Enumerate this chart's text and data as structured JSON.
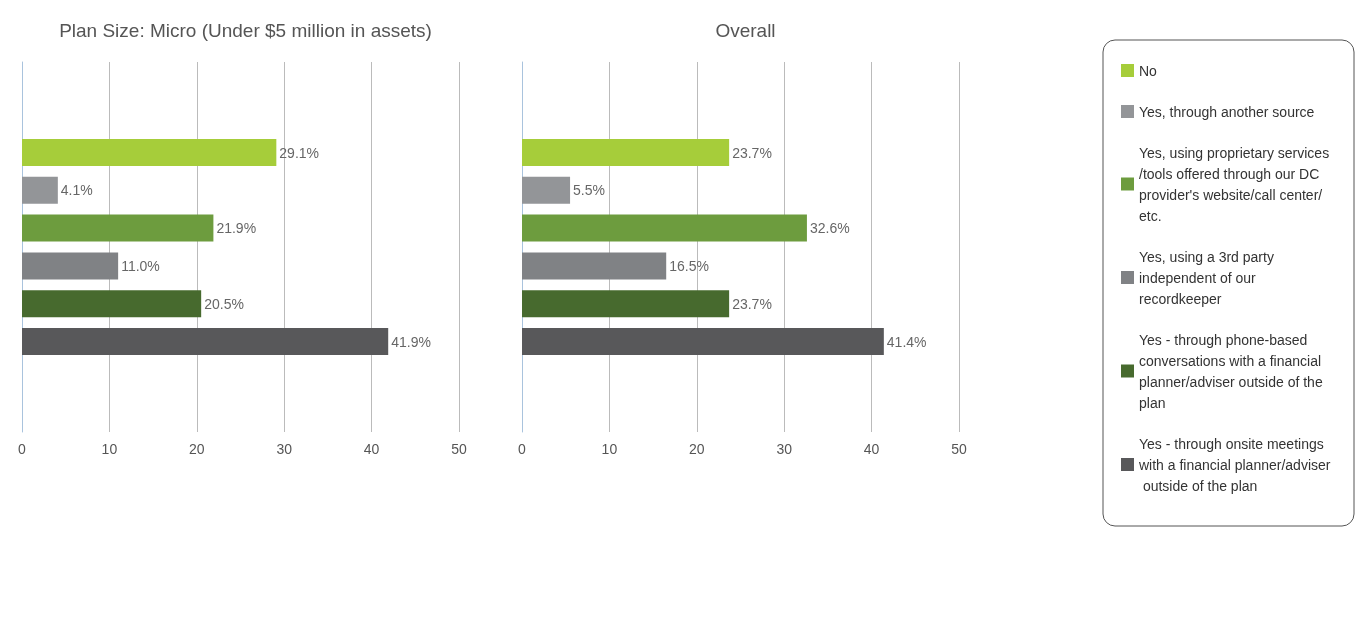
{
  "chart_data": [
    {
      "type": "bar",
      "orientation": "horizontal",
      "title": "Plan Size: Micro (Under $5 million in assets)",
      "categories": [
        null
      ],
      "series": [
        {
          "color": "#a6cd3a",
          "values": [
            29.1
          ],
          "value_labels": [
            "29.1%"
          ]
        },
        {
          "color": "#939598",
          "values": [
            4.1
          ],
          "value_labels": [
            "4.1%"
          ]
        },
        {
          "color": "#6d9c3e",
          "values": [
            21.9
          ],
          "value_labels": [
            "21.9%"
          ]
        },
        {
          "color": "#808285",
          "values": [
            11.0
          ],
          "value_labels": [
            "11.0%"
          ]
        },
        {
          "color": "#476a2e",
          "values": [
            20.5
          ],
          "value_labels": [
            "20.5%"
          ]
        },
        {
          "color": "#58585a",
          "values": [
            41.9
          ],
          "value_labels": [
            "41.9%"
          ]
        }
      ],
      "xlim": [
        0,
        50
      ],
      "xticks": [
        0,
        10,
        20,
        30,
        40,
        50
      ],
      "grid": "x",
      "legend": false
    },
    {
      "type": "bar",
      "orientation": "horizontal",
      "title": "Overall",
      "categories": [
        null
      ],
      "series": [
        {
          "name": "No",
          "color": "#a6cd3a",
          "values": [
            23.7
          ],
          "value_labels": [
            "23.7%"
          ]
        },
        {
          "name": "Yes, through another source",
          "color": "#939598",
          "values": [
            5.5
          ],
          "value_labels": [
            "5.5%"
          ]
        },
        {
          "name": "Yes, using proprietary services/tools offered through our DC provider's website/call center/etc.",
          "color": "#6d9c3e",
          "values": [
            32.6
          ],
          "value_labels": [
            "32.6%"
          ]
        },
        {
          "name": "Yes, using a 3rd party independent of our recordkeeper",
          "color": "#808285",
          "values": [
            16.5
          ],
          "value_labels": [
            "16.5%"
          ]
        },
        {
          "name": "Yes - through phone-based conversations with a financial planner/adviser outside of the plan",
          "color": "#476a2e",
          "values": [
            23.7
          ],
          "value_labels": [
            "23.7%"
          ]
        },
        {
          "name": "Yes - through onsite meetings with a financial planner/adviser outside of the plan",
          "color": "#58585a",
          "values": [
            41.4
          ],
          "value_labels": [
            "41.4%"
          ]
        }
      ],
      "xlim": [
        0,
        50
      ],
      "xticks": [
        0,
        10,
        20,
        30,
        40,
        50
      ],
      "grid": "x",
      "legend": "right"
    }
  ]
}
